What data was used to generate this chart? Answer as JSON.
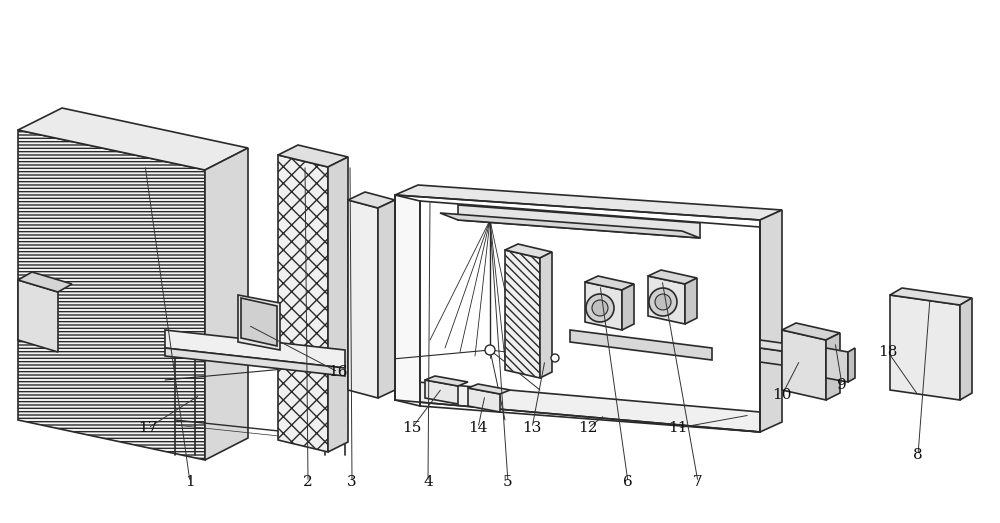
{
  "fig_width": 10.0,
  "fig_height": 5.23,
  "dpi": 100,
  "bg_color": "#ffffff",
  "lc": "#2a2a2a",
  "lw": 1.2,
  "annotations": [
    [
      "1",
      1.9,
      4.82
    ],
    [
      "2",
      3.08,
      4.82
    ],
    [
      "3",
      3.52,
      4.82
    ],
    [
      "4",
      4.28,
      4.82
    ],
    [
      "5",
      5.08,
      4.82
    ],
    [
      "6",
      6.28,
      4.82
    ],
    [
      "7",
      6.98,
      4.82
    ],
    [
      "8",
      9.18,
      4.55
    ],
    [
      "9",
      8.42,
      3.85
    ],
    [
      "10",
      7.82,
      3.95
    ],
    [
      "11",
      6.78,
      4.28
    ],
    [
      "12",
      5.88,
      4.28
    ],
    [
      "13",
      5.32,
      4.28
    ],
    [
      "14",
      4.78,
      4.28
    ],
    [
      "15",
      4.12,
      4.28
    ],
    [
      "16",
      3.38,
      3.72
    ],
    [
      "17",
      1.48,
      4.28
    ],
    [
      "18",
      8.88,
      3.52
    ]
  ]
}
